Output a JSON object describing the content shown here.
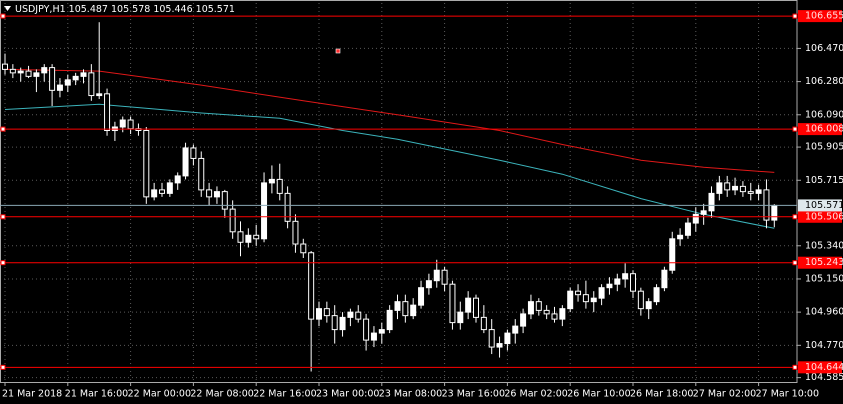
{
  "chart_data": {
    "type": "candlestick",
    "symbol": "USDJPY,H1",
    "ohlc": [
      105.487,
      105.578,
      105.446,
      105.571
    ],
    "categories": [
      "21 Mar 2018",
      null,
      null,
      null,
      null,
      null,
      null,
      null,
      "21 Mar 16:00",
      null,
      null,
      null,
      null,
      null,
      null,
      null,
      "22 Mar 00:00",
      null,
      null,
      null,
      null,
      null,
      null,
      null,
      "22 Mar 08:00",
      null,
      null,
      null,
      null,
      null,
      null,
      null,
      "22 Mar 16:00",
      null,
      null,
      null,
      null,
      null,
      null,
      null,
      "23 Mar 00:00",
      null,
      null,
      null,
      null,
      null,
      null,
      null,
      "23 Mar 08:00",
      null,
      null,
      null,
      null,
      null,
      null,
      null,
      "23 Mar 16:00",
      null,
      null,
      null,
      null,
      null,
      null,
      null,
      "26 Mar 02:00",
      null,
      null,
      null,
      null,
      null,
      null,
      null,
      "26 Mar 10:00",
      null,
      null,
      null,
      null,
      null,
      null,
      null,
      "26 Mar 18:00",
      null,
      null,
      null,
      null,
      null,
      null,
      null,
      "27 Mar 02:00",
      null,
      null,
      null,
      null,
      null,
      null,
      null,
      "27 Mar 10:00",
      null,
      null
    ],
    "candles": [
      [
        106.38,
        106.44,
        106.32,
        106.35
      ],
      [
        106.35,
        106.38,
        106.3,
        106.33
      ],
      [
        106.33,
        106.36,
        106.28,
        106.34
      ],
      [
        106.34,
        106.37,
        106.3,
        106.31
      ],
      [
        106.31,
        106.35,
        106.22,
        106.33
      ],
      [
        106.33,
        106.38,
        106.28,
        106.36
      ],
      [
        106.36,
        106.38,
        106.14,
        106.23
      ],
      [
        106.23,
        106.3,
        106.19,
        106.26
      ],
      [
        106.26,
        106.32,
        106.22,
        106.29
      ],
      [
        106.29,
        106.33,
        106.26,
        106.31
      ],
      [
        106.31,
        106.35,
        106.27,
        106.33
      ],
      [
        106.33,
        106.38,
        106.17,
        106.2
      ],
      [
        106.2,
        106.62,
        106.18,
        106.21
      ],
      [
        106.21,
        106.24,
        105.97,
        106.0
      ],
      [
        106.0,
        106.05,
        105.94,
        106.02
      ],
      [
        106.02,
        106.08,
        105.99,
        106.06
      ],
      [
        106.06,
        106.08,
        105.98,
        106.01
      ],
      [
        106.01,
        106.04,
        105.97,
        106.0
      ],
      [
        106.0,
        106.02,
        105.58,
        105.62
      ],
      [
        105.62,
        105.7,
        105.6,
        105.66
      ],
      [
        105.66,
        105.7,
        105.62,
        105.64
      ],
      [
        105.64,
        105.72,
        105.62,
        105.7
      ],
      [
        105.7,
        105.76,
        105.66,
        105.74
      ],
      [
        105.74,
        105.93,
        105.72,
        105.9
      ],
      [
        105.9,
        105.92,
        105.8,
        105.84
      ],
      [
        105.84,
        105.88,
        105.62,
        105.66
      ],
      [
        105.66,
        105.7,
        105.57,
        105.62
      ],
      [
        105.62,
        105.68,
        105.58,
        105.65
      ],
      [
        105.65,
        105.66,
        105.5,
        105.55
      ],
      [
        105.55,
        105.6,
        105.38,
        105.42
      ],
      [
        105.42,
        105.48,
        105.28,
        105.36
      ],
      [
        105.36,
        105.44,
        105.33,
        105.4
      ],
      [
        105.4,
        105.46,
        105.34,
        105.38
      ],
      [
        105.38,
        105.76,
        105.36,
        105.7
      ],
      [
        105.7,
        105.8,
        105.64,
        105.72
      ],
      [
        105.72,
        105.81,
        105.6,
        105.64
      ],
      [
        105.64,
        105.68,
        105.44,
        105.48
      ],
      [
        105.48,
        105.52,
        105.3,
        105.35
      ],
      [
        105.35,
        105.38,
        105.27,
        105.3
      ],
      [
        105.3,
        105.31,
        104.62,
        104.92
      ],
      [
        104.92,
        105.02,
        104.88,
        104.98
      ],
      [
        104.98,
        105.02,
        104.9,
        104.94
      ],
      [
        104.94,
        105.0,
        104.78,
        104.86
      ],
      [
        104.86,
        104.96,
        104.82,
        104.93
      ],
      [
        104.93,
        104.98,
        104.88,
        104.96
      ],
      [
        104.96,
        105.0,
        104.9,
        104.92
      ],
      [
        104.92,
        104.95,
        104.74,
        104.8
      ],
      [
        104.8,
        104.88,
        104.76,
        104.84
      ],
      [
        104.84,
        104.9,
        104.78,
        104.86
      ],
      [
        104.86,
        105.0,
        104.84,
        104.97
      ],
      [
        104.97,
        105.06,
        104.92,
        105.02
      ],
      [
        105.02,
        105.06,
        104.9,
        104.94
      ],
      [
        104.94,
        105.04,
        104.92,
        105.0
      ],
      [
        105.0,
        105.14,
        104.98,
        105.1
      ],
      [
        105.1,
        105.18,
        105.06,
        105.14
      ],
      [
        105.14,
        105.26,
        105.1,
        105.2
      ],
      [
        105.2,
        105.22,
        105.08,
        105.12
      ],
      [
        105.12,
        105.14,
        104.86,
        104.9
      ],
      [
        104.9,
        105.02,
        104.86,
        104.96
      ],
      [
        104.96,
        105.08,
        104.92,
        105.04
      ],
      [
        105.04,
        105.06,
        104.9,
        104.93
      ],
      [
        104.93,
        105.0,
        104.84,
        104.86
      ],
      [
        104.86,
        104.92,
        104.72,
        104.76
      ],
      [
        104.76,
        104.82,
        104.7,
        104.78
      ],
      [
        104.78,
        104.86,
        104.74,
        104.84
      ],
      [
        104.84,
        104.92,
        104.78,
        104.88
      ],
      [
        104.88,
        104.98,
        104.84,
        104.95
      ],
      [
        104.95,
        105.06,
        104.92,
        105.02
      ],
      [
        105.02,
        105.04,
        104.94,
        104.97
      ],
      [
        104.97,
        105.0,
        104.92,
        104.95
      ],
      [
        104.95,
        104.99,
        104.9,
        104.92
      ],
      [
        104.92,
        105.0,
        104.88,
        104.98
      ],
      [
        104.98,
        105.1,
        104.96,
        105.08
      ],
      [
        105.08,
        105.12,
        105.02,
        105.06
      ],
      [
        105.06,
        105.14,
        104.98,
        105.02
      ],
      [
        105.02,
        105.08,
        104.96,
        105.04
      ],
      [
        105.04,
        105.12,
        105.0,
        105.1
      ],
      [
        105.1,
        105.16,
        105.06,
        105.12
      ],
      [
        105.12,
        105.18,
        105.08,
        105.15
      ],
      [
        105.15,
        105.24,
        105.1,
        105.18
      ],
      [
        105.18,
        105.2,
        105.04,
        105.08
      ],
      [
        105.08,
        105.1,
        104.94,
        104.98
      ],
      [
        104.98,
        105.04,
        104.92,
        105.02
      ],
      [
        105.02,
        105.12,
        105.0,
        105.1
      ],
      [
        105.1,
        105.22,
        105.08,
        105.2
      ],
      [
        105.2,
        105.42,
        105.18,
        105.38
      ],
      [
        105.38,
        105.44,
        105.34,
        105.4
      ],
      [
        105.4,
        105.5,
        105.38,
        105.47
      ],
      [
        105.47,
        105.56,
        105.42,
        105.52
      ],
      [
        105.52,
        105.58,
        105.46,
        105.54
      ],
      [
        105.54,
        105.68,
        105.5,
        105.64
      ],
      [
        105.64,
        105.74,
        105.6,
        105.7
      ],
      [
        105.7,
        105.74,
        105.62,
        105.66
      ],
      [
        105.66,
        105.73,
        105.63,
        105.68
      ],
      [
        105.68,
        105.71,
        105.62,
        105.65
      ],
      [
        105.65,
        105.7,
        105.6,
        105.64
      ],
      [
        105.64,
        105.69,
        105.6,
        105.66
      ],
      [
        105.66,
        105.72,
        105.44,
        105.487
      ],
      [
        105.487,
        105.578,
        105.446,
        105.571
      ]
    ],
    "up_color": "#ffffff",
    "down_color": "#000000",
    "wick_color": "#ffffff",
    "moving_averages": [
      {
        "color": "#e01818",
        "x": [
          0,
          12,
          25,
          38,
          50,
          63,
          71,
          81,
          89,
          98
        ],
        "values": [
          106.35,
          106.34,
          106.26,
          106.17,
          106.09,
          106.0,
          105.92,
          105.83,
          105.79,
          105.76
        ]
      },
      {
        "color": "#3cb4bc",
        "x": [
          0,
          12,
          25,
          35,
          43,
          50,
          63,
          71,
          81,
          89,
          98
        ],
        "values": [
          106.12,
          106.15,
          106.1,
          106.07,
          106.0,
          105.95,
          105.83,
          105.75,
          105.61,
          105.52,
          105.44
        ]
      }
    ],
    "levels": [
      106.655,
      106.008,
      105.506,
      105.243,
      104.644
    ],
    "level_color": "#ff0000",
    "last_price": 105.571,
    "ylim": [
      104.56,
      106.73
    ],
    "yticks": [
      104.585,
      {
        "value": 104.77,
        "label": "104.770"
      },
      {
        "value": 104.96,
        "label": "104.960"
      },
      {
        "value": 105.15,
        "label": "105.150"
      },
      {
        "value": 105.34,
        "label": "105.340"
      },
      105.715,
      105.905,
      {
        "value": 106.09,
        "label": "106.090"
      },
      {
        "value": 106.28,
        "label": "106.280"
      },
      {
        "value": 106.47,
        "label": "106.470"
      }
    ],
    "grid": true
  }
}
